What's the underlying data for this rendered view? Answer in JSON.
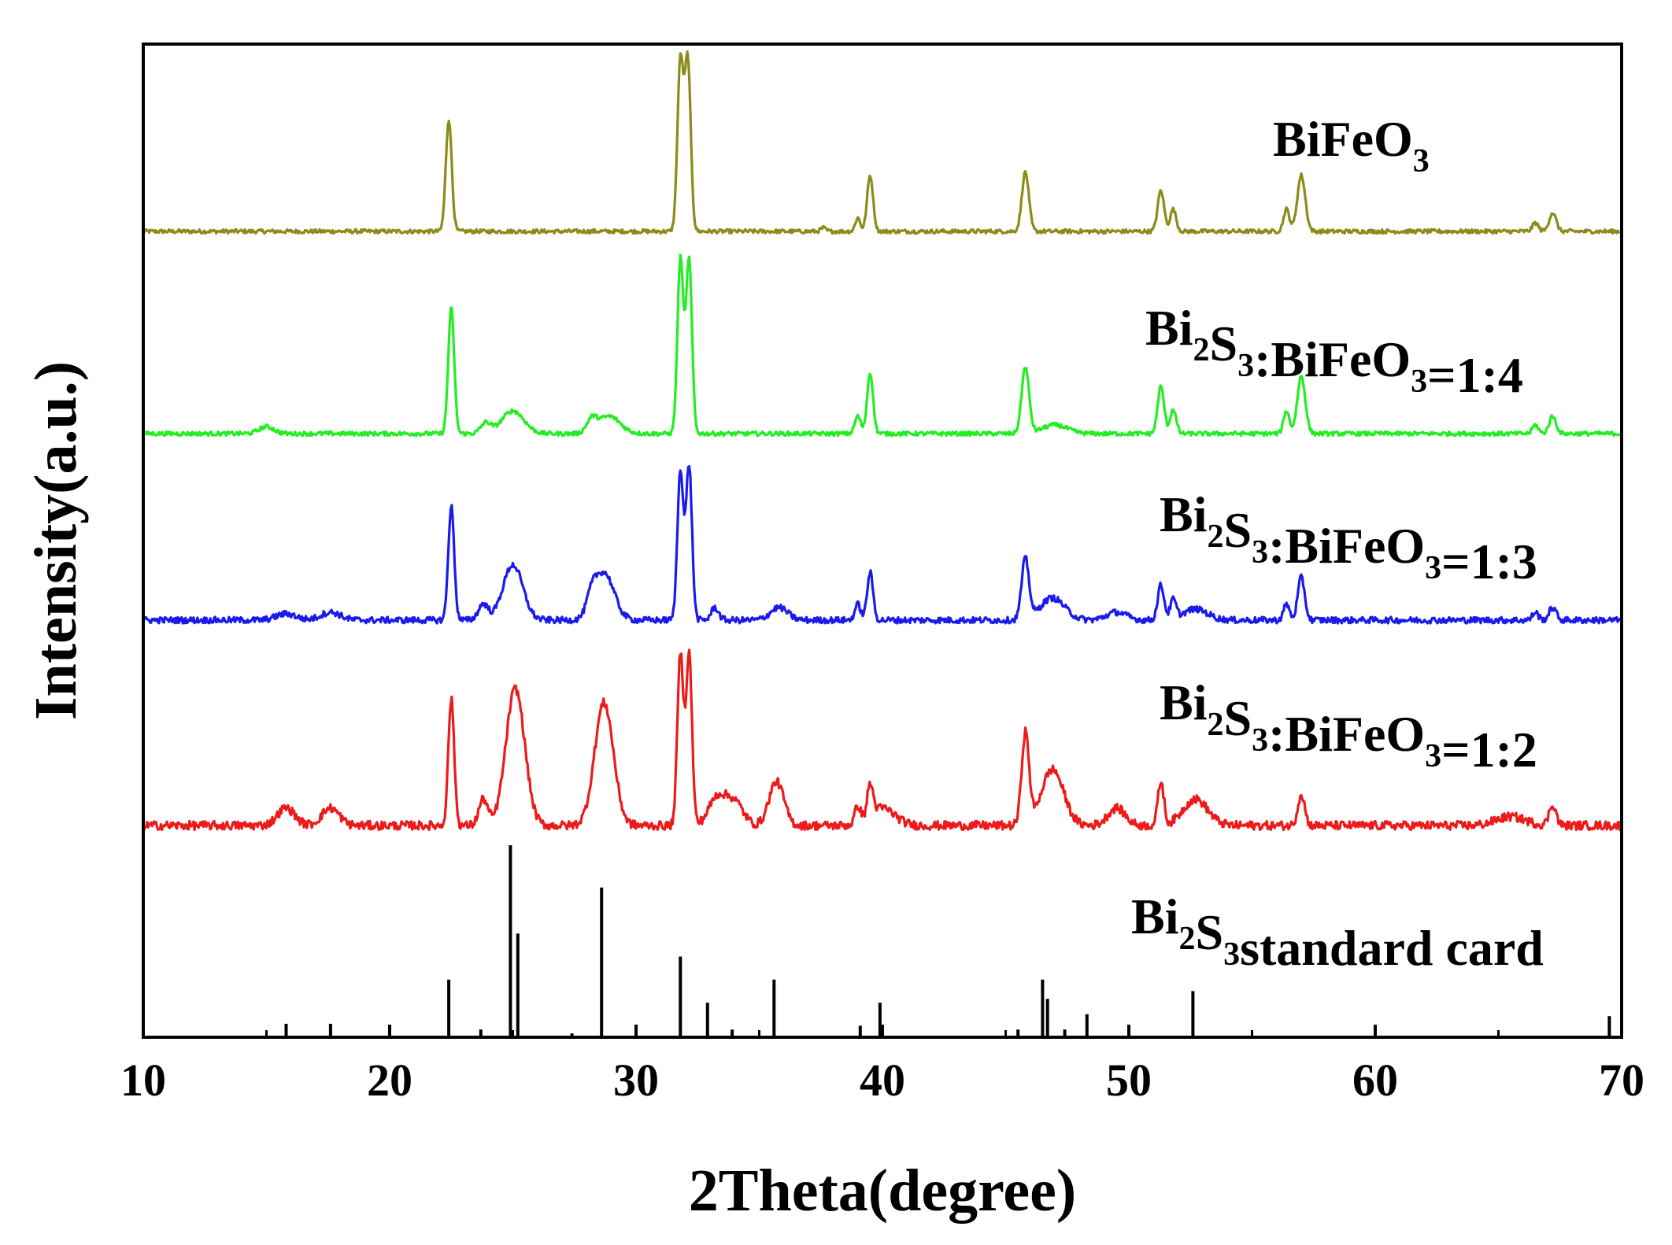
{
  "chart_data": {
    "type": "line",
    "title": "",
    "xlabel": "2Theta(degree)",
    "ylabel": "Intensity(a.u.)",
    "xlim": [
      10,
      70
    ],
    "xticks": [
      10,
      20,
      30,
      40,
      50,
      60,
      70
    ],
    "xtick_labels": [
      "10",
      "20",
      "30",
      "40",
      "50",
      "60",
      "70"
    ],
    "grid": false,
    "legend": "none (series labeled inline)",
    "series": [
      {
        "name": "BiFeO3",
        "label": {
          "base": "BiFeO",
          "parts": [
            {
              "t": "BiFeO",
              "sub": false
            },
            {
              "t": "3",
              "sub": true
            }
          ]
        },
        "color": "#8b8b1a",
        "noise": 0.012,
        "humps": [],
        "peaks": [
          {
            "x": 22.4,
            "h": 0.66,
            "w": 0.12
          },
          {
            "x": 31.8,
            "h": 1.0,
            "w": 0.12
          },
          {
            "x": 32.1,
            "h": 1.0,
            "w": 0.12
          },
          {
            "x": 37.6,
            "h": 0.02,
            "w": 0.1
          },
          {
            "x": 39.0,
            "h": 0.08,
            "w": 0.1
          },
          {
            "x": 39.5,
            "h": 0.33,
            "w": 0.12
          },
          {
            "x": 45.8,
            "h": 0.35,
            "w": 0.14
          },
          {
            "x": 51.3,
            "h": 0.24,
            "w": 0.13
          },
          {
            "x": 51.8,
            "h": 0.13,
            "w": 0.12
          },
          {
            "x": 56.4,
            "h": 0.13,
            "w": 0.12
          },
          {
            "x": 57.0,
            "h": 0.33,
            "w": 0.16
          },
          {
            "x": 66.5,
            "h": 0.05,
            "w": 0.12
          },
          {
            "x": 67.2,
            "h": 0.11,
            "w": 0.14
          }
        ]
      },
      {
        "name": "Bi2S3:BiFeO3=1:4",
        "label": {
          "parts": [
            {
              "t": "Bi",
              "sub": false
            },
            {
              "t": "2",
              "sub": true
            },
            {
              "t": "S",
              "sub": false
            },
            {
              "t": "3",
              "sub": true
            },
            {
              "t": ":BiFeO",
              "sub": false
            },
            {
              "t": "3",
              "sub": true
            },
            {
              "t": "=1:4",
              "sub": false
            }
          ]
        },
        "color": "#22ee22",
        "noise": 0.012,
        "humps": [
          {
            "x": 15.0,
            "h": 0.04,
            "w": 0.3
          },
          {
            "x": 25.0,
            "h": 0.13,
            "w": 0.45
          },
          {
            "x": 28.9,
            "h": 0.1,
            "w": 0.45
          },
          {
            "x": 47.0,
            "h": 0.05,
            "w": 0.5
          }
        ],
        "peaks": [
          {
            "x": 22.5,
            "h": 0.72,
            "w": 0.12
          },
          {
            "x": 23.9,
            "h": 0.06,
            "w": 0.2
          },
          {
            "x": 28.2,
            "h": 0.07,
            "w": 0.2
          },
          {
            "x": 31.8,
            "h": 1.0,
            "w": 0.12
          },
          {
            "x": 32.15,
            "h": 1.0,
            "w": 0.12
          },
          {
            "x": 39.0,
            "h": 0.1,
            "w": 0.12
          },
          {
            "x": 39.5,
            "h": 0.35,
            "w": 0.12
          },
          {
            "x": 45.8,
            "h": 0.38,
            "w": 0.15
          },
          {
            "x": 51.3,
            "h": 0.27,
            "w": 0.13
          },
          {
            "x": 51.8,
            "h": 0.14,
            "w": 0.12
          },
          {
            "x": 56.4,
            "h": 0.13,
            "w": 0.12
          },
          {
            "x": 57.0,
            "h": 0.33,
            "w": 0.16
          },
          {
            "x": 66.5,
            "h": 0.05,
            "w": 0.12
          },
          {
            "x": 67.2,
            "h": 0.1,
            "w": 0.14
          }
        ]
      },
      {
        "name": "Bi2S3:BiFeO3=1:3",
        "label": {
          "parts": [
            {
              "t": "Bi",
              "sub": false
            },
            {
              "t": "2",
              "sub": true
            },
            {
              "t": "S",
              "sub": false
            },
            {
              "t": "3",
              "sub": true
            },
            {
              "t": ":BiFeO",
              "sub": false
            },
            {
              "t": "3",
              "sub": true
            },
            {
              "t": "=1:3",
              "sub": false
            }
          ]
        },
        "color": "#1a1aee",
        "noise": 0.02,
        "humps": [
          {
            "x": 15.8,
            "h": 0.04,
            "w": 0.4
          },
          {
            "x": 17.6,
            "h": 0.05,
            "w": 0.4
          },
          {
            "x": 25.0,
            "h": 0.35,
            "w": 0.4
          },
          {
            "x": 28.7,
            "h": 0.3,
            "w": 0.4
          },
          {
            "x": 35.8,
            "h": 0.08,
            "w": 0.35
          },
          {
            "x": 46.9,
            "h": 0.14,
            "w": 0.5
          },
          {
            "x": 49.5,
            "h": 0.05,
            "w": 0.4
          },
          {
            "x": 52.7,
            "h": 0.07,
            "w": 0.5
          }
        ],
        "peaks": [
          {
            "x": 22.5,
            "h": 0.72,
            "w": 0.12
          },
          {
            "x": 23.8,
            "h": 0.1,
            "w": 0.2
          },
          {
            "x": 28.2,
            "h": 0.1,
            "w": 0.2
          },
          {
            "x": 31.8,
            "h": 0.95,
            "w": 0.12
          },
          {
            "x": 32.15,
            "h": 0.98,
            "w": 0.12
          },
          {
            "x": 33.2,
            "h": 0.08,
            "w": 0.15
          },
          {
            "x": 39.0,
            "h": 0.1,
            "w": 0.12
          },
          {
            "x": 39.5,
            "h": 0.3,
            "w": 0.12
          },
          {
            "x": 45.8,
            "h": 0.38,
            "w": 0.15
          },
          {
            "x": 51.3,
            "h": 0.22,
            "w": 0.13
          },
          {
            "x": 51.8,
            "h": 0.12,
            "w": 0.12
          },
          {
            "x": 56.4,
            "h": 0.1,
            "w": 0.12
          },
          {
            "x": 57.0,
            "h": 0.27,
            "w": 0.14
          },
          {
            "x": 66.5,
            "h": 0.05,
            "w": 0.12
          },
          {
            "x": 67.2,
            "h": 0.08,
            "w": 0.14
          }
        ]
      },
      {
        "name": "Bi2S3:BiFeO3=1:2",
        "label": {
          "parts": [
            {
              "t": "Bi",
              "sub": false
            },
            {
              "t": "2",
              "sub": true
            },
            {
              "t": "S",
              "sub": false
            },
            {
              "t": "3",
              "sub": true
            },
            {
              "t": ":BiFeO",
              "sub": false
            },
            {
              "t": "3",
              "sub": true
            },
            {
              "t": "=1:2",
              "sub": false
            }
          ]
        },
        "color": "#ee1a1a",
        "noise": 0.025,
        "humps": [
          {
            "x": 15.8,
            "h": 0.1,
            "w": 0.35
          },
          {
            "x": 17.6,
            "h": 0.1,
            "w": 0.35
          },
          {
            "x": 25.1,
            "h": 0.78,
            "w": 0.38
          },
          {
            "x": 28.7,
            "h": 0.7,
            "w": 0.38
          },
          {
            "x": 33.3,
            "h": 0.16,
            "w": 0.35
          },
          {
            "x": 34.0,
            "h": 0.13,
            "w": 0.35
          },
          {
            "x": 35.7,
            "h": 0.25,
            "w": 0.3
          },
          {
            "x": 40.0,
            "h": 0.1,
            "w": 0.5
          },
          {
            "x": 46.9,
            "h": 0.32,
            "w": 0.45
          },
          {
            "x": 49.5,
            "h": 0.1,
            "w": 0.35
          },
          {
            "x": 52.7,
            "h": 0.15,
            "w": 0.5
          },
          {
            "x": 65.5,
            "h": 0.05,
            "w": 0.6
          }
        ],
        "peaks": [
          {
            "x": 22.5,
            "h": 0.72,
            "w": 0.12
          },
          {
            "x": 23.8,
            "h": 0.15,
            "w": 0.18
          },
          {
            "x": 31.8,
            "h": 0.98,
            "w": 0.12
          },
          {
            "x": 32.15,
            "h": 0.98,
            "w": 0.12
          },
          {
            "x": 39.0,
            "h": 0.1,
            "w": 0.12
          },
          {
            "x": 39.5,
            "h": 0.18,
            "w": 0.12
          },
          {
            "x": 45.8,
            "h": 0.52,
            "w": 0.15
          },
          {
            "x": 51.3,
            "h": 0.25,
            "w": 0.12
          },
          {
            "x": 57.0,
            "h": 0.18,
            "w": 0.14
          },
          {
            "x": 67.2,
            "h": 0.12,
            "w": 0.14
          }
        ]
      }
    ],
    "reference": {
      "name": "Bi2S3standard card",
      "label": {
        "parts": [
          {
            "t": "Bi",
            "sub": false
          },
          {
            "t": "2",
            "sub": true
          },
          {
            "t": "S",
            "sub": false
          },
          {
            "t": "3",
            "sub": true
          },
          {
            "t": "standard card",
            "sub": false
          }
        ]
      },
      "color": "#000000",
      "sticks": [
        {
          "x": 15.8,
          "h": 0.07
        },
        {
          "x": 17.6,
          "h": 0.07
        },
        {
          "x": 22.4,
          "h": 0.3
        },
        {
          "x": 23.7,
          "h": 0.04
        },
        {
          "x": 24.9,
          "h": 1.0
        },
        {
          "x": 25.2,
          "h": 0.54
        },
        {
          "x": 27.4,
          "h": 0.02
        },
        {
          "x": 28.6,
          "h": 0.78
        },
        {
          "x": 31.8,
          "h": 0.42
        },
        {
          "x": 32.9,
          "h": 0.18
        },
        {
          "x": 33.9,
          "h": 0.04
        },
        {
          "x": 35.6,
          "h": 0.3
        },
        {
          "x": 39.1,
          "h": 0.06
        },
        {
          "x": 39.9,
          "h": 0.18
        },
        {
          "x": 45.5,
          "h": 0.04
        },
        {
          "x": 46.5,
          "h": 0.3
        },
        {
          "x": 46.7,
          "h": 0.2
        },
        {
          "x": 47.4,
          "h": 0.04
        },
        {
          "x": 48.3,
          "h": 0.12
        },
        {
          "x": 52.6,
          "h": 0.24
        },
        {
          "x": 69.5,
          "h": 0.11
        }
      ]
    }
  }
}
